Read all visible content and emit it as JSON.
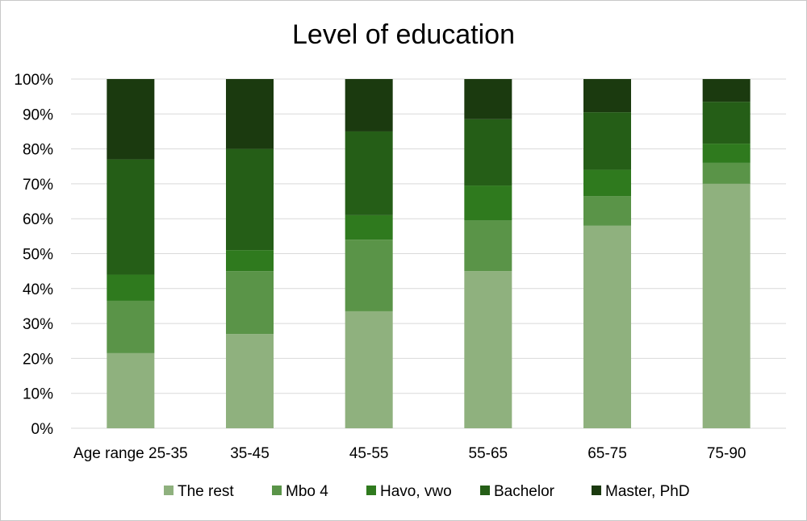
{
  "chart_data": {
    "type": "bar",
    "stacked": true,
    "title": "Level of education",
    "xlabel": "",
    "ylabel": "",
    "ylim": [
      0,
      100
    ],
    "yticks": [
      "0%",
      "10%",
      "20%",
      "30%",
      "40%",
      "50%",
      "60%",
      "70%",
      "80%",
      "90%",
      "100%"
    ],
    "categories": [
      "Age range 25-35",
      "35-45",
      "45-55",
      "55-65",
      "65-75",
      "75-90"
    ],
    "series": [
      {
        "name": "The rest",
        "color": "#8fb17e",
        "values": [
          21.5,
          27,
          33.5,
          45,
          58,
          70
        ]
      },
      {
        "name": "Mbo 4",
        "color": "#5a9448",
        "values": [
          15,
          18,
          20.5,
          14.5,
          8.5,
          6
        ]
      },
      {
        "name": "Havo, vwo",
        "color": "#2f7a1e",
        "values": [
          7.5,
          6,
          7,
          10,
          7.5,
          5.5
        ]
      },
      {
        "name": "Bachelor",
        "color": "#255e17",
        "values": [
          33,
          29,
          24,
          19,
          16.5,
          12
        ]
      },
      {
        "name": "Master, PhD",
        "color": "#1b3a0f",
        "values": [
          23,
          20,
          15,
          11.5,
          9.5,
          6.5
        ]
      }
    ],
    "grid": true,
    "legend": "bottom"
  }
}
